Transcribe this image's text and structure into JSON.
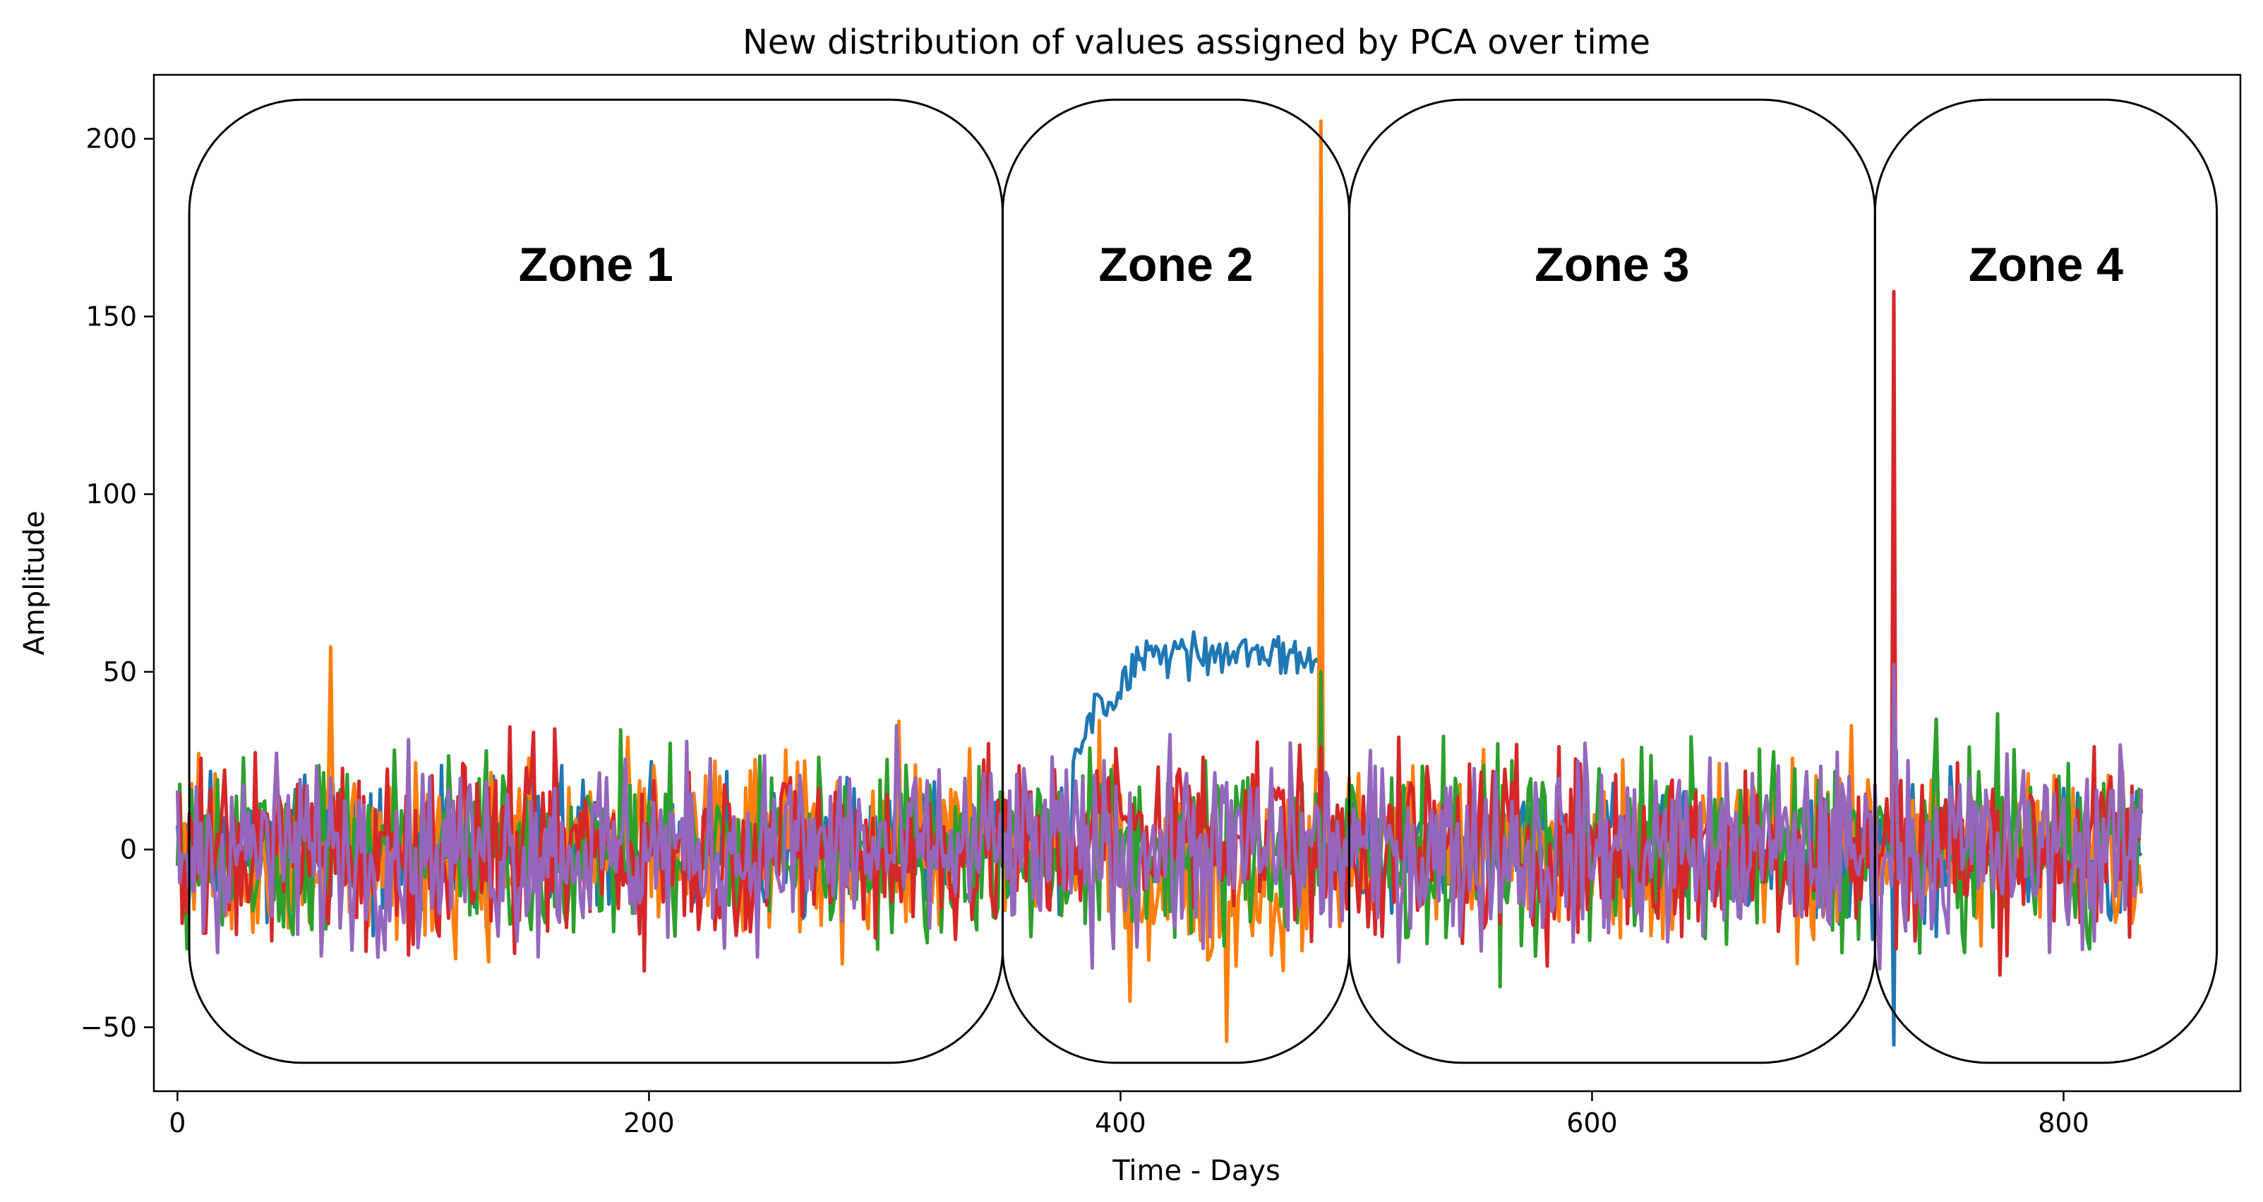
{
  "chart_data": {
    "type": "line",
    "title": "New distribution of values assigned by PCA over time",
    "xlabel": "Time - Days",
    "ylabel": "Amplitude",
    "xlim": [
      -10,
      875
    ],
    "ylim": [
      -68,
      218
    ],
    "xticks": [
      0,
      200,
      400,
      600,
      800
    ],
    "yticks": [
      -50,
      0,
      50,
      100,
      150,
      200
    ],
    "grid": false,
    "colors": [
      "#1f77b4",
      "#ff7f0e",
      "#2ca02c",
      "#d62728",
      "#9467bd"
    ],
    "zones": [
      {
        "label": "Zone 1",
        "x_range": [
          5,
          350
        ],
        "y_range": [
          -60,
          211
        ]
      },
      {
        "label": "Zone 2",
        "x_range": [
          350,
          497
        ],
        "y_range": [
          -60,
          211
        ]
      },
      {
        "label": "Zone 3",
        "x_range": [
          497,
          720
        ],
        "y_range": [
          -60,
          211
        ]
      },
      {
        "label": "Zone 4",
        "x_range": [
          720,
          865
        ],
        "y_range": [
          -60,
          211
        ]
      }
    ],
    "x_range_series": [
      0,
      833
    ],
    "series_envelope": {
      "baseline_spread": 13,
      "blue_plateau": {
        "x_range": [
          380,
          485
        ],
        "approx_value": 55,
        "range": [
          30,
          66
        ]
      },
      "spikes": [
        {
          "series": "orange",
          "x": 485,
          "y": 205
        },
        {
          "series": "red",
          "x": 728,
          "y": 157
        },
        {
          "series": "purple",
          "x": 728,
          "y": 52
        },
        {
          "series": "blue",
          "x": 728,
          "y": -55
        },
        {
          "series": "orange",
          "x": 65,
          "y": 57
        },
        {
          "series": "orange",
          "x": 445,
          "y": -54
        },
        {
          "series": "green",
          "x": 485,
          "y": 50
        }
      ]
    }
  }
}
